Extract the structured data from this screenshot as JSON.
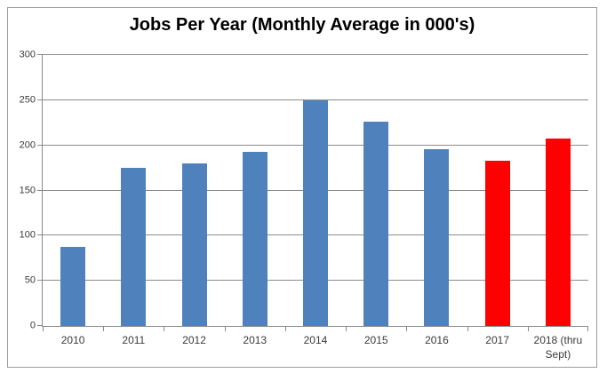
{
  "chart_data": {
    "type": "bar",
    "title": "Jobs Per Year (Monthly Average in 000's)",
    "categories": [
      "2010",
      "2011",
      "2012",
      "2013",
      "2014",
      "2015",
      "2016",
      "2017",
      "2018 (thru Sept)"
    ],
    "values": [
      88,
      175,
      180,
      193,
      250,
      226,
      196,
      183,
      208
    ],
    "bar_colors": [
      "#4F81BD",
      "#4F81BD",
      "#4F81BD",
      "#4F81BD",
      "#4F81BD",
      "#4F81BD",
      "#4F81BD",
      "#FF0000",
      "#FF0000"
    ],
    "xlabel": "",
    "ylabel": "",
    "ylim": [
      0,
      300
    ],
    "yticks": [
      0,
      50,
      100,
      150,
      200,
      250,
      300
    ],
    "grid": true,
    "legend": false,
    "colors": {
      "series_default": "#4F81BD",
      "series_highlight": "#FF0000",
      "gridline": "#8C8C8C",
      "axis": "#888888",
      "frame_border": "#9B9B9B",
      "title_text": "#000000",
      "tick_label_text": "#3A3A3A"
    }
  }
}
